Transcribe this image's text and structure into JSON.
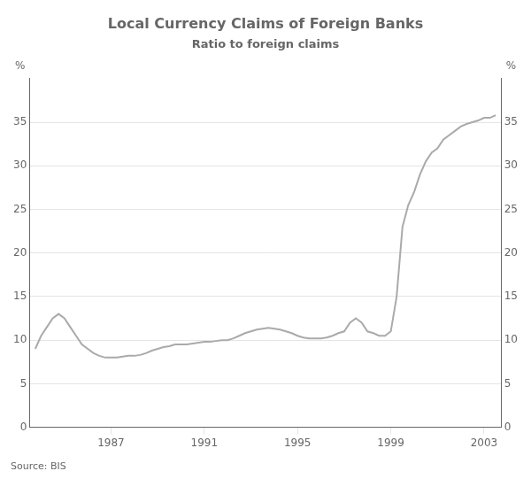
{
  "chart_data": {
    "type": "line",
    "title": "Local Currency Claims of Foreign Banks",
    "subtitle": "Ratio to foreign claims",
    "ylabel": "%",
    "y2label": "%",
    "source": "Source: BIS",
    "color": "#aaaaaa",
    "grid": true,
    "x": [
      1983.75,
      1984.0,
      1984.25,
      1984.5,
      1984.75,
      1985.0,
      1985.25,
      1985.5,
      1985.75,
      1986.0,
      1986.25,
      1986.5,
      1986.75,
      1987.0,
      1987.25,
      1987.5,
      1987.75,
      1988.0,
      1988.25,
      1988.5,
      1988.75,
      1989.0,
      1989.25,
      1989.5,
      1989.75,
      1990.0,
      1990.25,
      1990.5,
      1990.75,
      1991.0,
      1991.25,
      1991.5,
      1991.75,
      1992.0,
      1992.25,
      1992.5,
      1992.75,
      1993.0,
      1993.25,
      1993.5,
      1993.75,
      1994.0,
      1994.25,
      1994.5,
      1994.75,
      1995.0,
      1995.25,
      1995.5,
      1995.75,
      1996.0,
      1996.25,
      1996.5,
      1996.75,
      1997.0,
      1997.25,
      1997.5,
      1997.75,
      1998.0,
      1998.25,
      1998.5,
      1998.75,
      1999.0,
      1999.25,
      1999.5,
      1999.75,
      2000.0,
      2000.25,
      2000.5,
      2000.75,
      2001.0,
      2001.25,
      2001.5,
      2001.75,
      2002.0,
      2002.25,
      2002.5,
      2002.75,
      2003.0,
      2003.25,
      2003.5
    ],
    "values": [
      9.0,
      10.5,
      11.5,
      12.5,
      13.0,
      12.5,
      11.5,
      10.5,
      9.5,
      9.0,
      8.5,
      8.2,
      8.0,
      8.0,
      8.0,
      8.1,
      8.2,
      8.2,
      8.3,
      8.5,
      8.8,
      9.0,
      9.2,
      9.3,
      9.5,
      9.5,
      9.5,
      9.6,
      9.7,
      9.8,
      9.8,
      9.9,
      10.0,
      10.0,
      10.2,
      10.5,
      10.8,
      11.0,
      11.2,
      11.3,
      11.4,
      11.3,
      11.2,
      11.0,
      10.8,
      10.5,
      10.3,
      10.2,
      10.2,
      10.2,
      10.3,
      10.5,
      10.8,
      11.0,
      12.0,
      12.5,
      12.0,
      11.0,
      10.8,
      10.5,
      10.5,
      11.0,
      15.0,
      23.0,
      25.5,
      27.0,
      29.0,
      30.5,
      31.5,
      32.0,
      33.0,
      33.5,
      34.0,
      34.5,
      34.8,
      35.0,
      35.2,
      35.5,
      35.5,
      35.8
    ],
    "xlim": [
      1983.5,
      2003.75
    ],
    "xticks": [
      1987,
      1991,
      1995,
      1999,
      2003
    ],
    "ylim": [
      0,
      40
    ],
    "yticks": [
      0,
      5,
      10,
      15,
      20,
      25,
      30,
      35
    ],
    "y2lim": [
      0,
      40
    ],
    "y2ticks": [
      0,
      5,
      10,
      15,
      20,
      25,
      30,
      35
    ]
  }
}
